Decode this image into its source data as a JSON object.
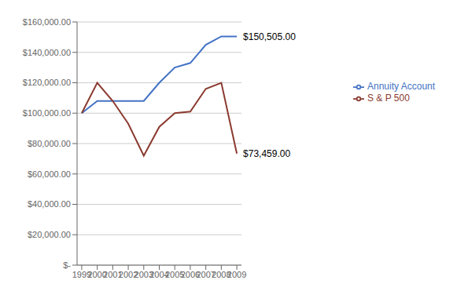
{
  "chart_data": {
    "type": "line",
    "x": [
      1999,
      2000,
      2001,
      2002,
      2003,
      2004,
      2005,
      2006,
      2007,
      2008,
      2009
    ],
    "xlim": [
      1998.7,
      2009.3
    ],
    "xticks": [
      1999,
      2000,
      2001,
      2002,
      2003,
      2004,
      2005,
      2006,
      2007,
      2008,
      2009
    ],
    "ylim": [
      0,
      160000
    ],
    "yticks": [
      {
        "value": 0,
        "label": "$-"
      },
      {
        "value": 20000,
        "label": "$20,000.00"
      },
      {
        "value": 40000,
        "label": "$40,000.00"
      },
      {
        "value": 60000,
        "label": "$60,000.00"
      },
      {
        "value": 80000,
        "label": "$80,000.00"
      },
      {
        "value": 100000,
        "label": "$100,000.00"
      },
      {
        "value": 120000,
        "label": "$120,000.00"
      },
      {
        "value": 140000,
        "label": "$140,000.00"
      },
      {
        "value": 160000,
        "label": "$160,000.00"
      }
    ],
    "series": [
      {
        "name": "Annuity Account",
        "color": "#4472C4",
        "values": [
          100000,
          108000,
          108000,
          108000,
          108000,
          120000,
          130000,
          133000,
          145000,
          150505,
          150505
        ]
      },
      {
        "name": "S & P 500",
        "color": "#8B3A2F",
        "values": [
          100000,
          120000,
          108000,
          93000,
          72000,
          91000,
          100000,
          101000,
          116000,
          120000,
          73459
        ]
      }
    ],
    "annotations": [
      {
        "text": "$150,505.00",
        "x": 2009,
        "y": 150505
      },
      {
        "text": "$73,459.00",
        "x": 2009,
        "y": 73459
      }
    ],
    "grid": "y",
    "legend": "right"
  }
}
